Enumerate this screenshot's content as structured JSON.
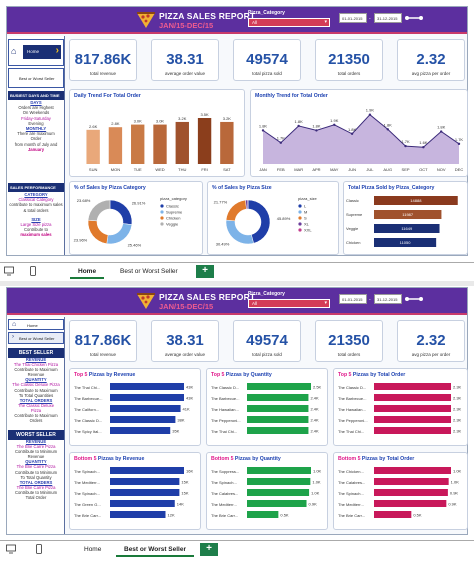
{
  "header": {
    "title": "PIZZA SALES REPORT",
    "subtitle": "JAN/15-DEC/15",
    "slicer_label": "Pizza_Category",
    "slicer_value": "All",
    "date_from": "01-01-2015",
    "date_to": "31-12-2015"
  },
  "kpis": [
    {
      "value": "817.86K",
      "label": "total revenue"
    },
    {
      "value": "38.31",
      "label": "average order value"
    },
    {
      "value": "49574",
      "label": "total pizza sold"
    },
    {
      "value": "21350",
      "label": "total orders"
    },
    {
      "value": "2.32",
      "label": "avg pizza per order"
    }
  ],
  "home_sidebar": {
    "home_label": "Home",
    "best_label": "Best or Worst Seller",
    "busiest_head": "BUSIEST DAYS AND TIME",
    "days_head": "DAYS",
    "days_lines": [
      "Orders are Highest",
      "On Weekends",
      "Friday-Saturday",
      "Evening"
    ],
    "monthly_head": "MONTHLY",
    "monthly_lines": [
      "There are maximum",
      "Order",
      "from month of July and",
      "January"
    ],
    "sales_head": "SALES PERFORMANCE",
    "category_head": "CATEGORY",
    "category_lines": [
      "Classical Category",
      "contribute to maximum sales & total orders"
    ],
    "size_head": "SIZE",
    "size_lines": [
      "Large Size pizza",
      "Contribute to",
      "maximum sales"
    ]
  },
  "daily_chart": {
    "title": "Daily Trend For Total Order",
    "chart_data": {
      "type": "bar",
      "categories": [
        "SUN",
        "MON",
        "TUE",
        "WED",
        "THU",
        "FRI",
        "SAT"
      ],
      "values": [
        2.6,
        2.8,
        3.0,
        3.0,
        3.2,
        3.5,
        3.2
      ],
      "labels": [
        "2.6K",
        "2.8K",
        "3.0K",
        "3.0K",
        "3.2K",
        "3.5K",
        "3.2K"
      ]
    }
  },
  "monthly_chart": {
    "title": "Monthly Trend for Total Order",
    "chart_data": {
      "type": "area",
      "categories": [
        "JAN",
        "FEB",
        "MAR",
        "APR",
        "MAY",
        "JUN",
        "JUL",
        "AUG",
        "SEP",
        "OCT",
        "NOV",
        "DEC"
      ],
      "values": [
        1.8,
        1.69,
        1.84,
        1.8,
        1.85,
        1.77,
        1.94,
        1.81,
        1.66,
        1.65,
        1.79,
        1.68
      ],
      "labels": [
        "1.8K",
        "1.7K",
        "1.8K",
        "1.8K",
        "1.9K",
        "1.8K",
        "1.9K",
        "1.8K",
        "1.7K",
        "1.6K",
        "1.8K",
        "1.7K"
      ]
    }
  },
  "cat_donut": {
    "title": "% of Sales by Pizza Category",
    "legend_title": "pizza_category",
    "chart_data": {
      "type": "pie",
      "categories": [
        "Classic",
        "Supreme",
        "Chicken",
        "Veggie"
      ],
      "values": [
        26.91,
        25.46,
        23.96,
        23.68
      ],
      "labels": [
        "26.91%",
        "25.46%",
        "23.96%",
        "23.68%"
      ]
    }
  },
  "size_donut": {
    "title": "% of Sales by Pizza Size",
    "legend_title": "pizza_size",
    "chart_data": {
      "type": "pie",
      "categories": [
        "L",
        "M",
        "S",
        "XL",
        "XXL"
      ],
      "values": [
        45.89,
        30.49,
        21.77,
        1.72,
        0.12
      ],
      "labels": [
        "45.89%",
        "30.49%",
        "21.77%",
        "",
        ""
      ]
    }
  },
  "cat_bars": {
    "title": "Total Pizza Sold by Pizza_Category",
    "chart_data": {
      "type": "bar",
      "categories": [
        "Classic",
        "Supreme",
        "Veggie",
        "Chicken"
      ],
      "values": [
        14888,
        11987,
        11649,
        11050
      ],
      "labels": [
        "14888",
        "11987",
        "11649",
        "11050"
      ]
    }
  },
  "best_sidebar": {
    "home_label": "Home",
    "best_label": "Best or Worst Seller",
    "best_head": "BEST SELLER",
    "revenue_head": "REVENUE",
    "revenue_lines": [
      "The Thai Chicken Pizza",
      "Contribute to Maximum",
      "Revenue"
    ],
    "quantity_head": "QUANTITY",
    "quantity_lines": [
      "The Classic Deluxe Pizza",
      "Contribute to Maximum",
      "To Total Quantities"
    ],
    "orders_head": "TOTAL ORDERS",
    "orders_lines": [
      "The Classic Deluxe",
      "Pizza",
      "Contribute to Maximum",
      "Orders"
    ],
    "worst_head": "WORST SELLER",
    "w_revenue_head": "REVENUE",
    "w_revenue_lines": [
      "The Brie Carre Pizza",
      "Contribute to Minimum",
      "Revenue"
    ],
    "w_quantity_head": "QUANTITY",
    "w_quantity_lines": [
      "The Brie Carre Pizza",
      "Contribute to Minimum",
      "To Total Quantity"
    ],
    "w_orders_head": "TOTAL ORDERS",
    "w_orders_lines": [
      "The Brie Carre Pizza",
      "Contribute to Minimum",
      "Total Order"
    ]
  },
  "top_panels": [
    {
      "title_a": "Top 5 ",
      "title_b": "Pizzas by Revenue",
      "color": "#1f3ea8",
      "chart_data": {
        "type": "bar",
        "categories": [
          "The Thai Chi...",
          "The Barbecue...",
          "The Californ...",
          "The Classic D...",
          "The Spicy Ital..."
        ],
        "values": [
          43,
          43,
          41,
          38,
          35
        ],
        "labels": [
          "43K",
          "43K",
          "41K",
          "38K",
          "35K"
        ]
      }
    },
    {
      "title_a": "Top 5 ",
      "title_b": "Pizzas by Quantity",
      "color": "#1ea34a",
      "chart_data": {
        "type": "bar",
        "categories": [
          "The Classic D...",
          "The Barbecue...",
          "The Hawaiian...",
          "The Pepperoni...",
          "The Thai Chi..."
        ],
        "values": [
          2.5,
          2.4,
          2.4,
          2.4,
          2.4
        ],
        "labels": [
          "2.5K",
          "2.4K",
          "2.4K",
          "2.4K",
          "2.4K"
        ]
      }
    },
    {
      "title_a": "Top 5 ",
      "title_b": "Pizzas by Total Order",
      "color": "#c8185a",
      "chart_data": {
        "type": "bar",
        "categories": [
          "The Classic D...",
          "The Barbecue...",
          "The Hawaiian...",
          "The Pepperoni...",
          "The Thai Chi..."
        ],
        "values": [
          2.3,
          2.3,
          2.3,
          2.3,
          2.3
        ],
        "labels": [
          "2.3K",
          "2.3K",
          "2.3K",
          "2.3K",
          "2.3K"
        ]
      }
    }
  ],
  "bottom_panels": [
    {
      "title_a": "Bottom 5 ",
      "title_b": "Pizzas by Revenue",
      "color": "#1f3ea8",
      "chart_data": {
        "type": "bar",
        "categories": [
          "The Spinach...",
          "The Mediterr...",
          "The Spinach...",
          "The Green G...",
          "The Brie Carr..."
        ],
        "values": [
          16,
          15,
          15,
          14,
          12
        ],
        "labels": [
          "16K",
          "15K",
          "15K",
          "14K",
          "12K"
        ]
      }
    },
    {
      "title_a": "Bottom 5 ",
      "title_b": "Pizzas by Quantity",
      "color": "#1ea34a",
      "chart_data": {
        "type": "bar",
        "categories": [
          "The Soppress...",
          "The Spinach...",
          "The Calabres...",
          "The Mediterr...",
          "The Brie Carr..."
        ],
        "values": [
          1.0,
          0.99,
          0.97,
          0.93,
          0.49
        ],
        "labels": [
          "1.0K",
          "1.0K",
          "1.0K",
          "0.9K",
          "0.5K"
        ]
      }
    },
    {
      "title_a": "Bottom 5 ",
      "title_b": "Pizzas by Total Order",
      "color": "#c8185a",
      "chart_data": {
        "type": "bar",
        "categories": [
          "The Chicken...",
          "The Calabres...",
          "The Spinach...",
          "The Mediterr...",
          "The Brie Carr..."
        ],
        "values": [
          0.99,
          0.96,
          0.95,
          0.93,
          0.48
        ],
        "labels": [
          "1.0K",
          "1.0K",
          "0.9K",
          "0.9K",
          "0.5K"
        ]
      }
    }
  ],
  "footer1": {
    "tab_home": "Home",
    "tab_best": "Best or Worst Seller",
    "plus": "+"
  },
  "footer2": {
    "tab_home": "Home",
    "tab_best": "Best or Worst Seller",
    "plus": "+"
  },
  "colors": {
    "header": "#5c2f9f",
    "accent": "#c83a6b",
    "bar_brown": "#a0522d",
    "area": "#b9a3d6",
    "navy": "#1a2f75",
    "donut": [
      "#1f3ea8",
      "#7db3e8",
      "#e07a2c",
      "#b0b0b0"
    ]
  }
}
